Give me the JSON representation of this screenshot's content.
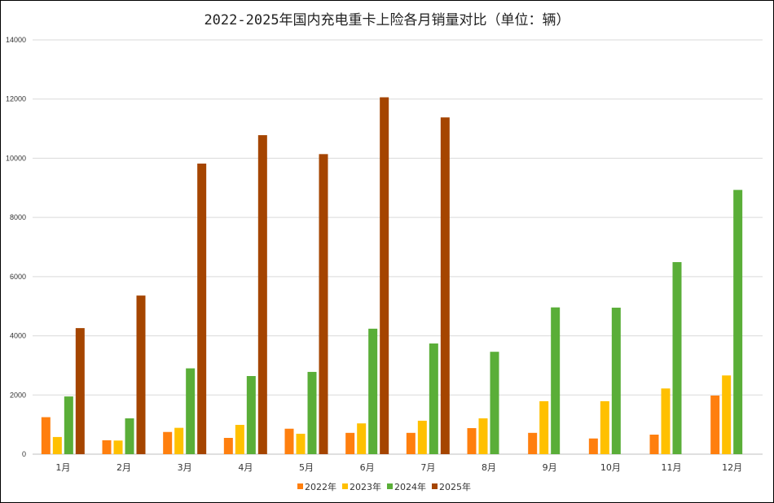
{
  "chart_data": {
    "type": "bar",
    "title": "2022-2025年国内充电重卡上险各月销量对比（单位：辆）",
    "xlabel": "",
    "ylabel": "",
    "ylim": [
      0,
      14000
    ],
    "yticks": [
      0,
      2000,
      4000,
      6000,
      8000,
      10000,
      12000,
      14000
    ],
    "ytick_labels": [
      "0",
      "2000",
      "4000",
      "6000",
      "8000",
      "10000",
      "12000",
      "14000"
    ],
    "grid": true,
    "legend_position": "bottom",
    "categories": [
      "1月",
      "2月",
      "3月",
      "4月",
      "5月",
      "6月",
      "7月",
      "8月",
      "9月",
      "10月",
      "11月",
      "12月"
    ],
    "series": [
      {
        "name": "2022年",
        "color": "#FF7F0E",
        "values": [
          1250,
          470,
          750,
          550,
          860,
          720,
          720,
          880,
          720,
          530,
          660,
          1980
        ]
      },
      {
        "name": "2023年",
        "color": "#FFC000",
        "values": [
          580,
          460,
          890,
          990,
          690,
          1040,
          1130,
          1210,
          1790,
          1790,
          2220,
          2660
        ]
      },
      {
        "name": "2024年",
        "color": "#5AAE38",
        "values": [
          1950,
          1210,
          2900,
          2640,
          2780,
          4240,
          3740,
          3460,
          4960,
          4950,
          6490,
          8930
        ]
      },
      {
        "name": "2025年",
        "color": "#A54500",
        "values": [
          4260,
          5360,
          9820,
          10780,
          10140,
          12060,
          11380,
          null,
          null,
          null,
          null,
          null
        ]
      }
    ]
  }
}
